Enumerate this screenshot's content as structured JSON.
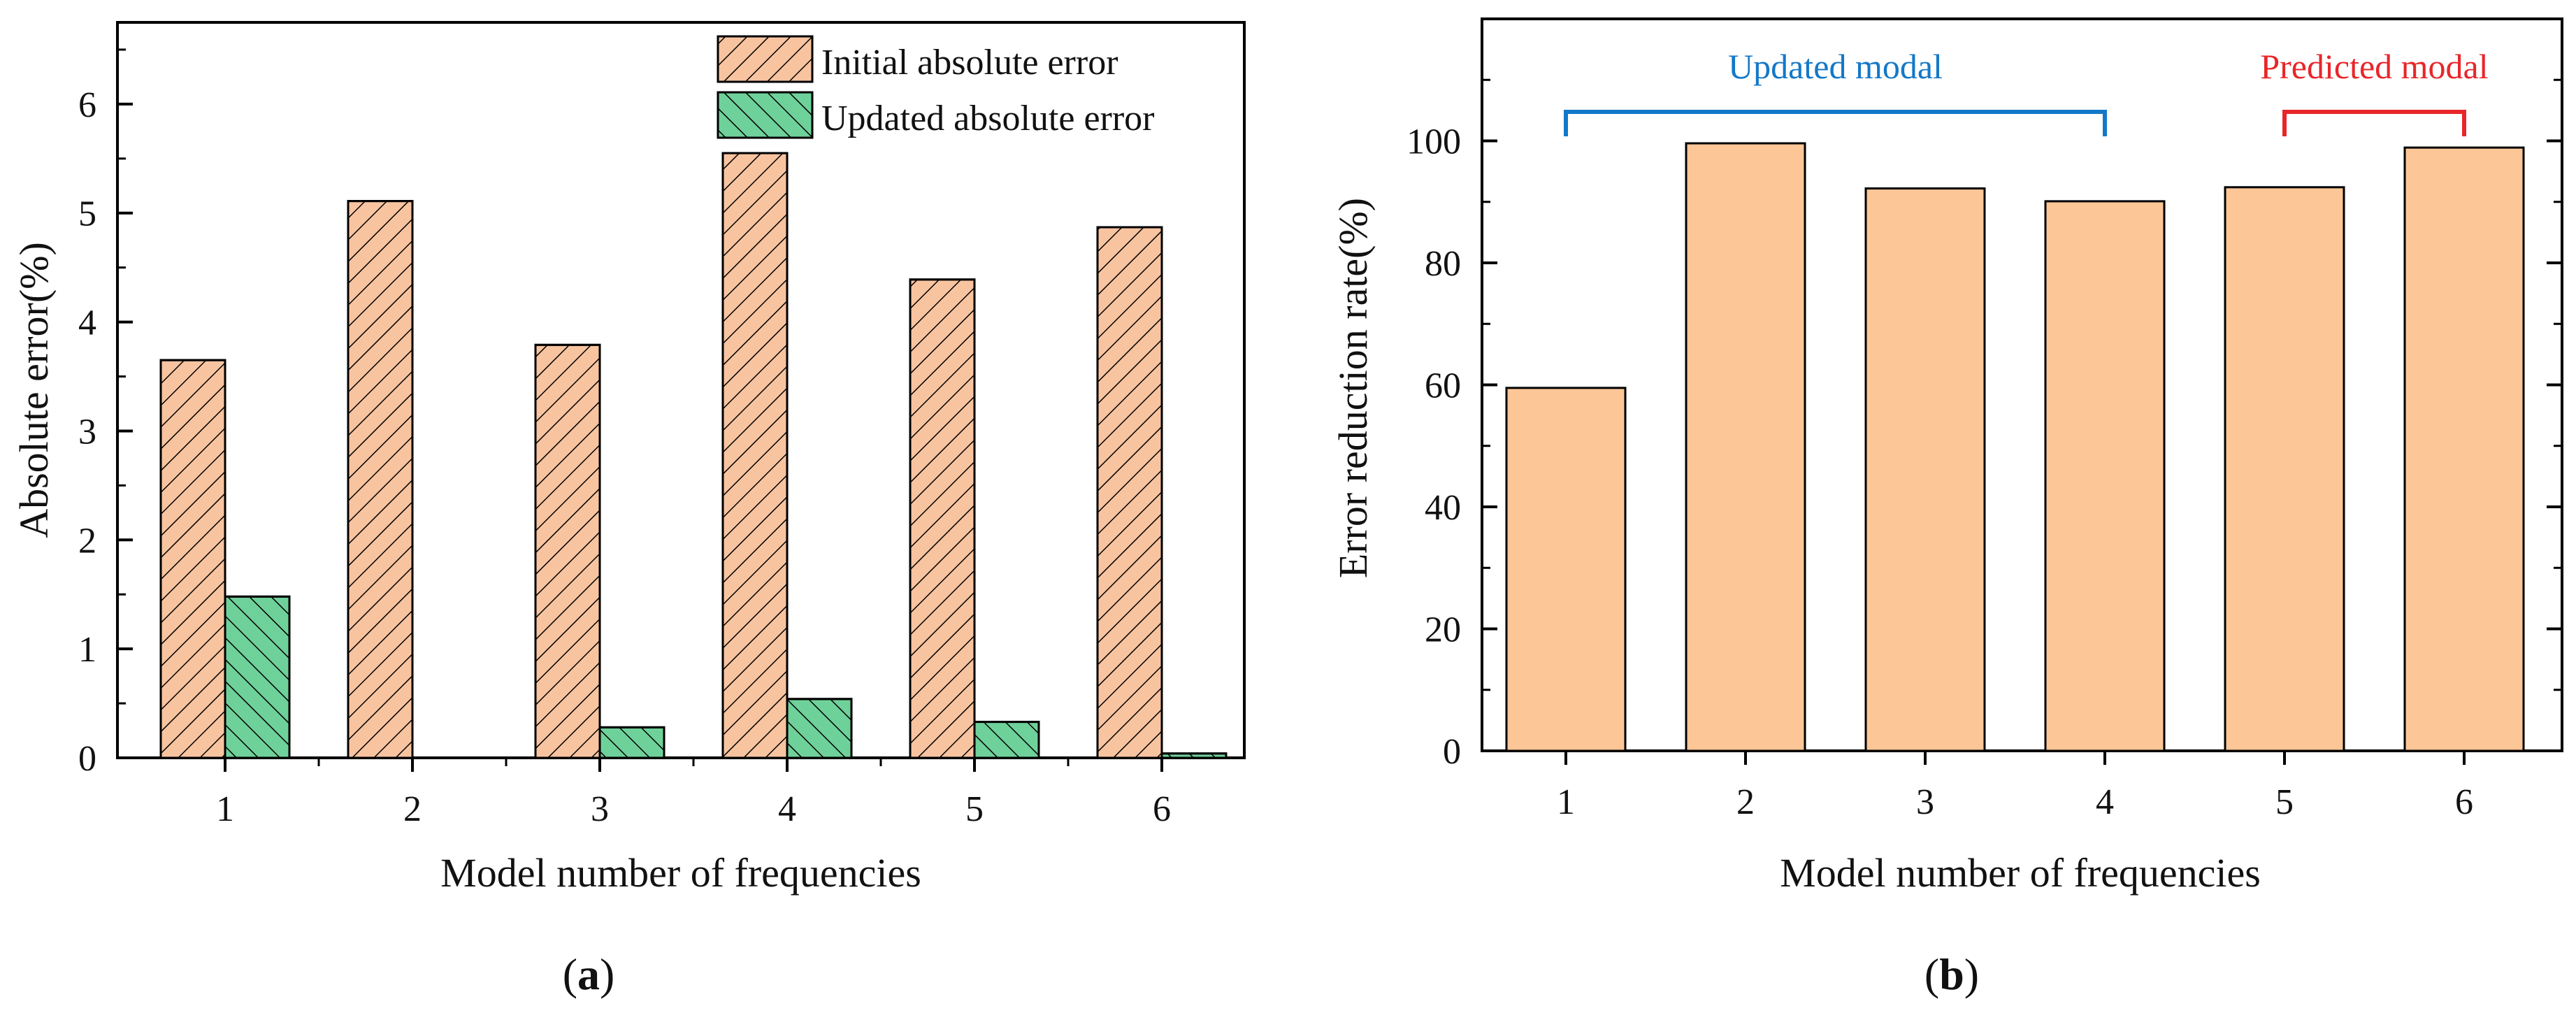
{
  "chart_data": [
    {
      "panel_label": "(a)",
      "panel_letter": "a",
      "type": "bar",
      "xlabel": "Model number of frequencies",
      "ylabel": "Absolute error(%)",
      "categories": [
        "1",
        "2",
        "3",
        "4",
        "5",
        "6"
      ],
      "ylim": [
        0,
        6.75
      ],
      "yticks": [
        0,
        1,
        2,
        3,
        4,
        5,
        6
      ],
      "legend_position": "top-right",
      "series": [
        {
          "name": "Initial absolute error",
          "values": [
            3.65,
            5.11,
            3.79,
            5.55,
            4.39,
            4.87
          ],
          "color": "#f8c4a0",
          "hatch": "forward-diagonal"
        },
        {
          "name": "Updated absolute error",
          "values": [
            1.48,
            0.0,
            0.28,
            0.54,
            0.33,
            0.04
          ],
          "color": "#6fd19a",
          "hatch": "back-diagonal"
        }
      ]
    },
    {
      "panel_label": "(b)",
      "panel_letter": "b",
      "type": "bar",
      "xlabel": "Model number of frequencies",
      "ylabel": "Error reduction rate(%)",
      "categories": [
        "1",
        "2",
        "3",
        "4",
        "5",
        "6"
      ],
      "ylim": [
        0,
        120
      ],
      "yticks": [
        0,
        20,
        40,
        60,
        80,
        100
      ],
      "series": [
        {
          "name": "Error reduction rate",
          "values": [
            59.5,
            99.6,
            92.2,
            90.1,
            92.4,
            98.9
          ],
          "color": "#fdc696"
        }
      ],
      "annotations": [
        {
          "text": "Updated modal",
          "from_category": "1",
          "to_category": "4",
          "color": "#1478c8"
        },
        {
          "text": "Predicted modal",
          "from_category": "5",
          "to_category": "6",
          "color": "#e8262a"
        }
      ]
    }
  ]
}
